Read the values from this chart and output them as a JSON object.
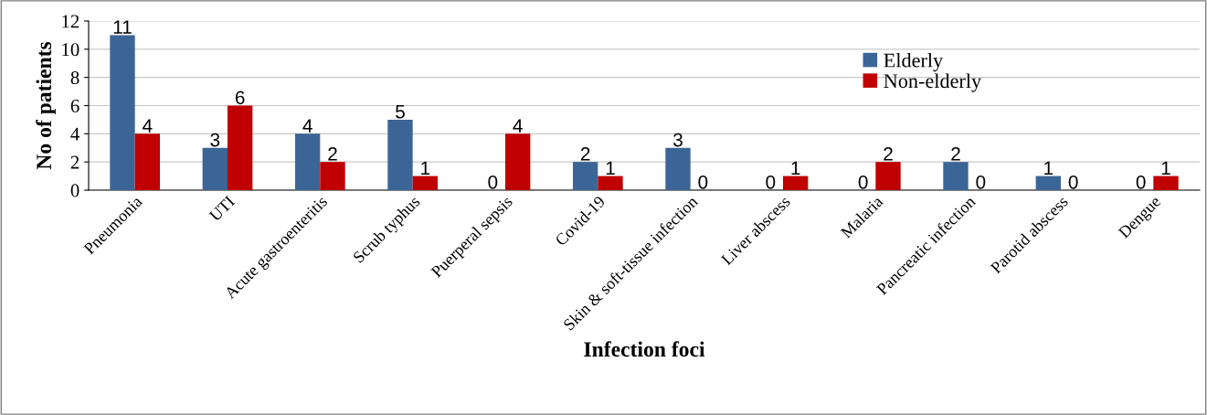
{
  "chart_data": {
    "type": "bar",
    "xlabel": "Infection foci",
    "ylabel": "No of patients",
    "categories": [
      "Pneumonia",
      "UTI",
      "Acute gastroenteritis",
      "Scrub typhus",
      "Puerperal sepsis",
      "Covid-19",
      "Skin & soft-tissue infection",
      "Liver abscess",
      "Malaria",
      "Pancreatic infection",
      "Parotid abscess",
      "Dengue"
    ],
    "series": [
      {
        "name": "Elderly",
        "color": "#3b6596",
        "values": [
          11,
          3,
          4,
          5,
          0,
          2,
          3,
          0,
          0,
          2,
          1,
          0
        ]
      },
      {
        "name": "Non-elderly",
        "color": "#c00000",
        "values": [
          4,
          6,
          2,
          1,
          4,
          1,
          0,
          1,
          2,
          0,
          0,
          1
        ]
      }
    ],
    "ylim": [
      0,
      12
    ],
    "yticks": [
      0,
      2,
      4,
      6,
      8,
      10,
      12
    ],
    "grid": "y",
    "legend": "top right",
    "data_labels": true
  }
}
